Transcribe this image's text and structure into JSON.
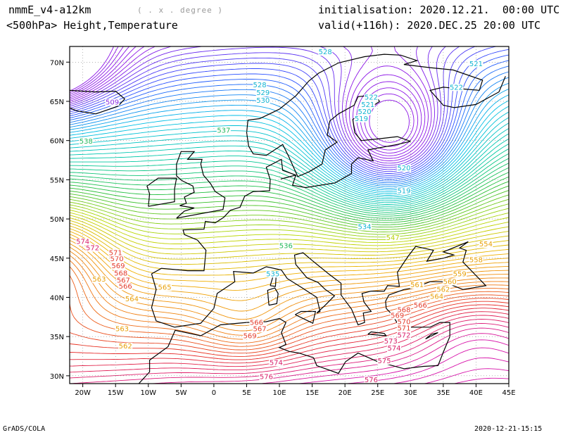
{
  "header": {
    "model": "nmmE_v4-a12km",
    "units": "( . x . degree )",
    "level": "<500hPa> Height,Temperature",
    "init": "initialisation: 2020.12.21.  00:00 UTC",
    "valid": "valid(+116h): 2020.DEC.25 20:00 UTC"
  },
  "footer": {
    "left": "GrADS/COLA",
    "right": "2020-12-21-15:15"
  },
  "axes": {
    "lon_labels": [
      "20W",
      "15W",
      "10W",
      "5W",
      "0",
      "5E",
      "10E",
      "15E",
      "20E",
      "25E",
      "30E",
      "35E",
      "40E",
      "45E"
    ],
    "lat_labels": [
      "70N",
      "65N",
      "60N",
      "55N",
      "50N",
      "45N",
      "40N",
      "35N",
      "30N"
    ]
  },
  "contour_labels": [
    {
      "text": "528",
      "c": "#12b4d2",
      "lon": 17,
      "lat": 71
    },
    {
      "text": "521",
      "c": "#12b4d2",
      "lon": 40,
      "lat": 69.5
    },
    {
      "text": "522",
      "c": "#12b4d2",
      "lon": 37,
      "lat": 66.5
    },
    {
      "text": "528",
      "c": "#12b4d2",
      "lon": 7,
      "lat": 66.8
    },
    {
      "text": "529",
      "c": "#12b4d2",
      "lon": 7.5,
      "lat": 65.8
    },
    {
      "text": "530",
      "c": "#12b4d2",
      "lon": 7.5,
      "lat": 64.8
    },
    {
      "text": "522",
      "c": "#12b4d2",
      "lon": 24,
      "lat": 65.2
    },
    {
      "text": "521",
      "c": "#12b4d2",
      "lon": 23.5,
      "lat": 64.3
    },
    {
      "text": "520",
      "c": "#12b4d2",
      "lon": 23,
      "lat": 63.4
    },
    {
      "text": "519",
      "c": "#12b4d2",
      "lon": 22.5,
      "lat": 62.5
    },
    {
      "text": "520",
      "c": "#12b4d2",
      "lon": 29,
      "lat": 56.2
    },
    {
      "text": "519",
      "c": "#12b4d2",
      "lon": 29,
      "lat": 53.3
    },
    {
      "text": "509",
      "c": "#8a2be2",
      "lon": -15.5,
      "lat": 64.6
    },
    {
      "text": "538",
      "c": "#22b85a",
      "lon": -19.5,
      "lat": 59.6
    },
    {
      "text": "537",
      "c": "#22b85a",
      "lon": 1.5,
      "lat": 61
    },
    {
      "text": "536",
      "c": "#22b85a",
      "lon": 11,
      "lat": 46.3
    },
    {
      "text": "535",
      "c": "#12b4d2",
      "lon": 9,
      "lat": 42.7
    },
    {
      "text": "534",
      "c": "#12b4d2",
      "lon": 23,
      "lat": 48.7
    },
    {
      "text": "547",
      "c": "#b8d20a",
      "lon": 27.3,
      "lat": 47.3
    },
    {
      "text": "554",
      "c": "#e8a008",
      "lon": 41.5,
      "lat": 46.5
    },
    {
      "text": "558",
      "c": "#e8a008",
      "lon": 40,
      "lat": 44.5
    },
    {
      "text": "559",
      "c": "#e8a008",
      "lon": 37.5,
      "lat": 42.7
    },
    {
      "text": "560",
      "c": "#e8a008",
      "lon": 36,
      "lat": 41.7
    },
    {
      "text": "561",
      "c": "#e8a008",
      "lon": 31,
      "lat": 41.3
    },
    {
      "text": "562",
      "c": "#e8a008",
      "lon": 35,
      "lat": 40.7
    },
    {
      "text": "564",
      "c": "#e8a008",
      "lon": 34,
      "lat": 39.8
    },
    {
      "text": "565",
      "c": "#e8a008",
      "lon": -7.5,
      "lat": 41
    },
    {
      "text": "563",
      "c": "#e8a008",
      "lon": -17.5,
      "lat": 42
    },
    {
      "text": "564",
      "c": "#e8a008",
      "lon": -12.5,
      "lat": 39.5
    },
    {
      "text": "563",
      "c": "#e8a008",
      "lon": -14,
      "lat": 35.7
    },
    {
      "text": "562",
      "c": "#e8a008",
      "lon": -13.5,
      "lat": 33.5
    },
    {
      "text": "566",
      "c": "#e33a2a",
      "lon": -13.5,
      "lat": 41.1
    },
    {
      "text": "567",
      "c": "#e33a2a",
      "lon": -13.8,
      "lat": 41.9
    },
    {
      "text": "568",
      "c": "#e33a2a",
      "lon": -14.2,
      "lat": 42.8
    },
    {
      "text": "569",
      "c": "#e33a2a",
      "lon": -14.6,
      "lat": 43.7
    },
    {
      "text": "570",
      "c": "#e33a2a",
      "lon": -14.8,
      "lat": 44.6
    },
    {
      "text": "571",
      "c": "#e33a2a",
      "lon": -15,
      "lat": 45.4
    },
    {
      "text": "572",
      "c": "#d81f6a",
      "lon": -18.5,
      "lat": 46
    },
    {
      "text": "574",
      "c": "#d81f6a",
      "lon": -20,
      "lat": 46.8
    },
    {
      "text": "566",
      "c": "#e33a2a",
      "lon": 31.5,
      "lat": 38.7
    },
    {
      "text": "568",
      "c": "#e33a2a",
      "lon": 29,
      "lat": 38.1
    },
    {
      "text": "569",
      "c": "#e33a2a",
      "lon": 28,
      "lat": 37.4
    },
    {
      "text": "570",
      "c": "#e33a2a",
      "lon": 29,
      "lat": 36.6
    },
    {
      "text": "571",
      "c": "#e33a2a",
      "lon": 29,
      "lat": 35.8
    },
    {
      "text": "572",
      "c": "#d81f6a",
      "lon": 29,
      "lat": 34.9
    },
    {
      "text": "573",
      "c": "#d81f6a",
      "lon": 27,
      "lat": 34.1
    },
    {
      "text": "574",
      "c": "#d81f6a",
      "lon": 27.5,
      "lat": 33.2
    },
    {
      "text": "575",
      "c": "#d81f6a",
      "lon": 26,
      "lat": 31.6
    },
    {
      "text": "574",
      "c": "#d81f6a",
      "lon": 9.5,
      "lat": 31.4
    },
    {
      "text": "576",
      "c": "#d81f6a",
      "lon": 8,
      "lat": 29.6
    },
    {
      "text": "576",
      "c": "#d81f6a",
      "lon": 24,
      "lat": 29.2
    },
    {
      "text": "566",
      "c": "#e33a2a",
      "lon": 6.5,
      "lat": 36.5
    },
    {
      "text": "567",
      "c": "#e33a2a",
      "lon": 7,
      "lat": 35.7
    },
    {
      "text": "569",
      "c": "#e33a2a",
      "lon": 5.5,
      "lat": 34.8
    }
  ]
}
